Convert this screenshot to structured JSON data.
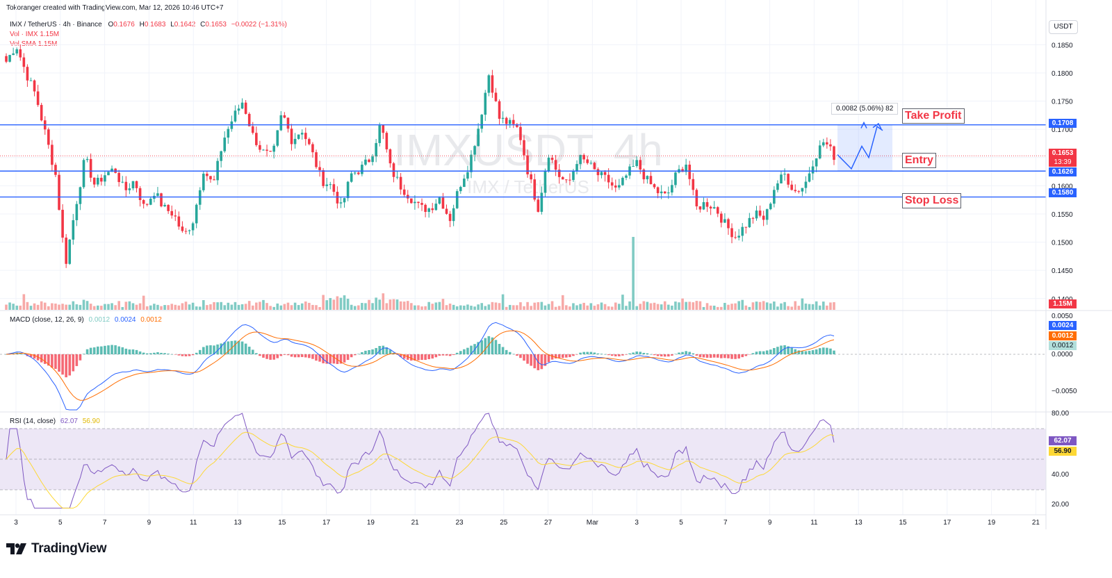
{
  "header": {
    "attribution": "Tokoranger created with TradingView.com, Mar 12, 2026 10:46 UTC+7",
    "symbol_line": "IMX / TetherUS · 4h · Binance",
    "open_label": "O",
    "open_value": "0.1676",
    "high_label": "H",
    "high_value": "0.1683",
    "low_label": "L",
    "low_value": "0.1642",
    "close_label": "C",
    "close_value": "0.1653",
    "change": "−0.0022 (−1.31%)",
    "vol_line1": "Vol · IMX  1.15M",
    "vol_line2": "Vol SMA  1.15M"
  },
  "currency_button": "USDT",
  "watermark": {
    "line1": "IMXUSDT, 4h",
    "line2": "IMX / TetherUS"
  },
  "trade_setup": {
    "take_profit": {
      "label": "Take Profit",
      "price": 0.1708,
      "price_text": "0.1708"
    },
    "entry": {
      "label": "Entry",
      "price": 0.1626,
      "price_text": "0.1626"
    },
    "stop_loss": {
      "label": "Stop Loss",
      "price": 0.158,
      "price_text": "0.1580"
    },
    "measure_label": "0.0082 (5.06%) 82",
    "last_price": "0.1653",
    "countdown": "13:39",
    "volume_tag": "1.15M"
  },
  "macd_panel": {
    "title": "MACD (close, 12, 26, 9)",
    "hist_value": "0.0012",
    "macd_value": "0.0024",
    "signal_value": "0.0012",
    "axis_ticks": [
      "0.0050",
      "0.0000",
      "−0.0050"
    ]
  },
  "rsi_panel": {
    "title": "RSI (14, close)",
    "rsi_value": "62.07",
    "ma_value": "56.90",
    "axis_ticks": [
      "80.00",
      "40.00",
      "20.00"
    ]
  },
  "colors": {
    "up": "#26a69a",
    "down": "#f23645",
    "level_line": "#2962ff",
    "macd_line": "#2962ff",
    "signal_line": "#ff6d00",
    "rsi_line": "#7e57c2",
    "rsi_ma": "#fdd835",
    "rsi_band": "#ede7f6"
  },
  "chart_data": {
    "type": "candlestick",
    "symbol": "IMX / TetherUS",
    "interval": "4h",
    "exchange": "Binance",
    "price_axis_ticks": [
      0.185,
      0.18,
      0.175,
      0.17,
      0.165,
      0.16,
      0.155,
      0.15,
      0.145,
      0.14
    ],
    "price_axis_labels": [
      "0.1850",
      "0.1800",
      "0.1750",
      "0.1700",
      "0.1650",
      "0.1600",
      "0.1550",
      "0.1500",
      "0.1450",
      "0.1400"
    ],
    "ylim": [
      0.138,
      0.188
    ],
    "x_labels": [
      "3",
      "5",
      "7",
      "9",
      "11",
      "13",
      "15",
      "17",
      "19",
      "21",
      "23",
      "25",
      "27",
      "Mar",
      "3",
      "5",
      "7",
      "9",
      "11",
      "13",
      "15",
      "17",
      "19",
      "21"
    ],
    "horizontal_levels": [
      0.1708,
      0.1626,
      0.158
    ],
    "last": {
      "open": 0.1676,
      "high": 0.1683,
      "low": 0.1642,
      "close": 0.1653,
      "change": -0.0022,
      "change_pct": -1.31
    },
    "close_path": [
      0.182,
      0.185,
      0.18,
      0.176,
      0.169,
      0.162,
      0.146,
      0.156,
      0.165,
      0.16,
      0.162,
      0.163,
      0.159,
      0.161,
      0.156,
      0.159,
      0.156,
      0.155,
      0.151,
      0.154,
      0.163,
      0.16,
      0.168,
      0.172,
      0.175,
      0.169,
      0.166,
      0.165,
      0.173,
      0.168,
      0.17,
      0.166,
      0.161,
      0.16,
      0.156,
      0.162,
      0.163,
      0.165,
      0.171,
      0.163,
      0.16,
      0.158,
      0.156,
      0.156,
      0.158,
      0.154,
      0.16,
      0.164,
      0.171,
      0.18,
      0.172,
      0.171,
      0.17,
      0.162,
      0.156,
      0.166,
      0.162,
      0.16,
      0.165,
      0.164,
      0.162,
      0.161,
      0.159,
      0.162,
      0.164,
      0.161,
      0.159,
      0.158,
      0.162,
      0.164,
      0.156,
      0.157,
      0.156,
      0.153,
      0.151,
      0.153,
      0.155,
      0.154,
      0.16,
      0.162,
      0.159,
      0.16,
      0.165,
      0.168,
      0.1653
    ],
    "volume_peak_note": "volume spike near Mar 2"
  }
}
